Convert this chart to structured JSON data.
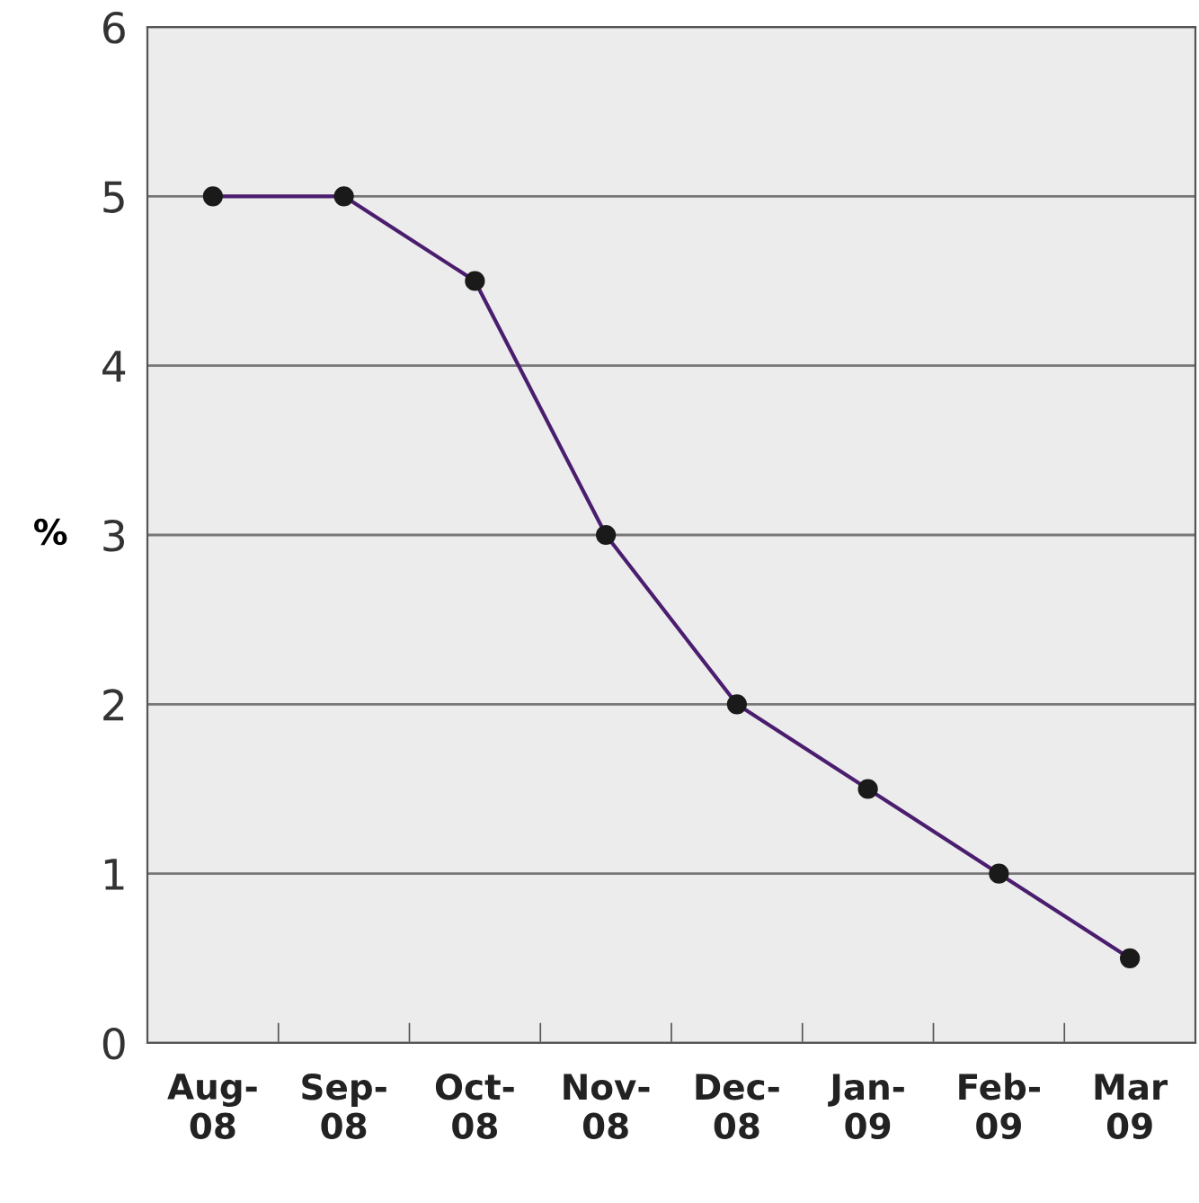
{
  "chart_data": {
    "type": "line",
    "ylabel": "%",
    "categories": [
      "Aug-\n08",
      "Sep-\n08",
      "Oct-\n08",
      "Nov-\n08",
      "Dec-\n08",
      "Jan-\n09",
      "Feb-\n09",
      "Mar\n09"
    ],
    "series": [
      {
        "color": "#4a1d6e",
        "values": [
          5,
          5,
          4.5,
          3,
          2,
          1.5,
          1,
          0.5
        ]
      }
    ],
    "ylim": [
      0,
      6
    ],
    "yticks": [
      0,
      1,
      2,
      3,
      4,
      5,
      6
    ],
    "grid": "y",
    "marker": "circle",
    "line_style": "solid",
    "legend": false
  }
}
